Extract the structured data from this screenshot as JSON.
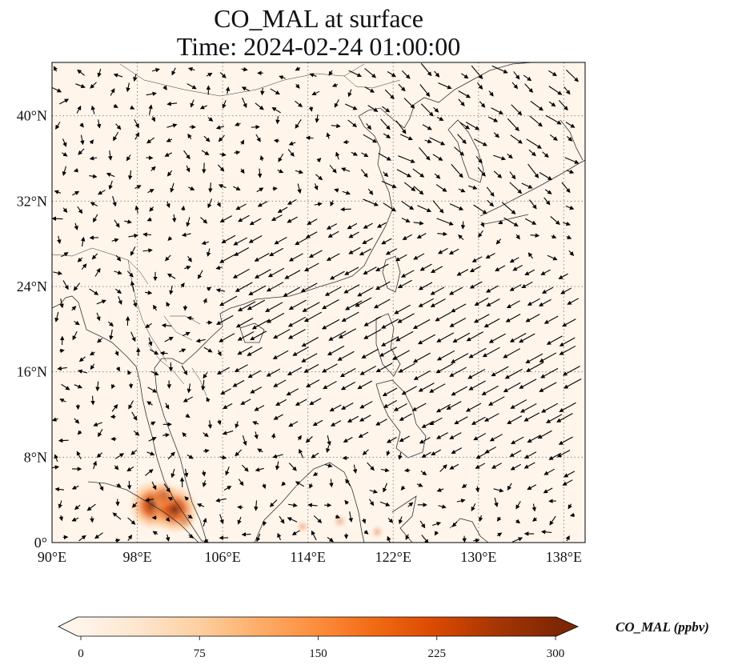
{
  "title": {
    "line1": "CO_MAL at surface",
    "line2": "Time: 2024-02-24 01:00:00"
  },
  "map": {
    "lon_range": [
      90,
      140
    ],
    "lat_range": [
      0,
      45
    ],
    "lon_ticks": [
      {
        "value": 90,
        "label": "90°E"
      },
      {
        "value": 98,
        "label": "98°E"
      },
      {
        "value": 106,
        "label": "106°E"
      },
      {
        "value": 114,
        "label": "114°E"
      },
      {
        "value": 122,
        "label": "122°E"
      },
      {
        "value": 130,
        "label": "130°E"
      },
      {
        "value": 138,
        "label": "138°E"
      }
    ],
    "lat_ticks": [
      {
        "value": 0,
        "label": "0°"
      },
      {
        "value": 8,
        "label": "8°N"
      },
      {
        "value": 16,
        "label": "16°N"
      },
      {
        "value": 24,
        "label": "24°N"
      },
      {
        "value": 32,
        "label": "32°N"
      },
      {
        "value": 40,
        "label": "40°N"
      }
    ],
    "gridlines": true,
    "background_color": "#fff5eb",
    "coast_color": "#333333",
    "vector_color": "#000000"
  },
  "colorbar": {
    "label": "CO_MAL (ppbv)",
    "min": 0,
    "max": 300,
    "extend": "both",
    "ticks": [
      {
        "value": 0,
        "label": "0"
      },
      {
        "value": 75,
        "label": "75"
      },
      {
        "value": 150,
        "label": "150"
      },
      {
        "value": 225,
        "label": "225"
      },
      {
        "value": 300,
        "label": "300"
      }
    ],
    "colors": [
      "#fff5eb",
      "#fee6ce",
      "#fdd0a2",
      "#fdae6b",
      "#fd8d3c",
      "#f16913",
      "#d94801",
      "#a63603",
      "#7f2704"
    ]
  },
  "hotspots": [
    {
      "lon": 99.5,
      "lat": 3.5,
      "value": 300
    },
    {
      "lon": 101.5,
      "lat": 3.1,
      "value": 290
    },
    {
      "lon": 100.5,
      "lat": 4.5,
      "value": 140
    },
    {
      "lon": 102.5,
      "lat": 2.0,
      "value": 90
    },
    {
      "lon": 113.5,
      "lat": 1.5,
      "value": 40
    },
    {
      "lon": 117.0,
      "lat": 2.0,
      "value": 45
    },
    {
      "lon": 120.5,
      "lat": 1.0,
      "value": 40
    }
  ]
}
